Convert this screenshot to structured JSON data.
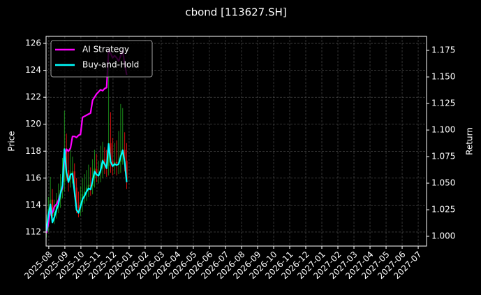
{
  "chart_data": {
    "type": "candlestick",
    "title": "cbond [113627.SH]",
    "ylabel": "Price",
    "y2label": "Return",
    "grid": true,
    "legend": "upper left",
    "xlim": [
      -0.17,
      23.52
    ],
    "xticks": [
      {
        "value": 0,
        "label": "2025-08"
      },
      {
        "value": 1,
        "label": "2025-09"
      },
      {
        "value": 2,
        "label": "2025-10"
      },
      {
        "value": 3,
        "label": "2025-11"
      },
      {
        "value": 4,
        "label": "2025-12"
      },
      {
        "value": 5,
        "label": "2026-01"
      },
      {
        "value": 6,
        "label": "2026-02"
      },
      {
        "value": 7,
        "label": "2026-03"
      },
      {
        "value": 8,
        "label": "2026-04"
      },
      {
        "value": 9,
        "label": "2026-05"
      },
      {
        "value": 10,
        "label": "2026-06"
      },
      {
        "value": 11,
        "label": "2026-07"
      },
      {
        "value": 12,
        "label": "2026-08"
      },
      {
        "value": 13,
        "label": "2026-09"
      },
      {
        "value": 14,
        "label": "2026-10"
      },
      {
        "value": 15,
        "label": "2026-11"
      },
      {
        "value": 16,
        "label": "2026-12"
      },
      {
        "value": 17,
        "label": "2027-01"
      },
      {
        "value": 18,
        "label": "2027-02"
      },
      {
        "value": 19,
        "label": "2027-03"
      },
      {
        "value": 20,
        "label": "2027-04"
      },
      {
        "value": 21,
        "label": "2027-05"
      },
      {
        "value": 22,
        "label": "2027-06"
      },
      {
        "value": 23,
        "label": "2027-07"
      }
    ],
    "ylim": [
      110.96,
      126.52
    ],
    "yticks": [
      112,
      114,
      116,
      118,
      120,
      122,
      124,
      126
    ],
    "y2lim": [
      0.9908,
      1.1882
    ],
    "y2ticks": [
      {
        "value": 1,
        "label": "1.000"
      },
      1.025,
      {
        "value": 1.05,
        "label": "1.050"
      },
      1.075,
      {
        "value": 1.1,
        "label": "1.100"
      },
      1.125,
      {
        "value": 1.15,
        "label": "1.150"
      },
      1.175
    ],
    "x": [
      -0.15,
      -0.025,
      0.1,
      0.225,
      0.35,
      0.475,
      0.6,
      0.725,
      0.85,
      0.975,
      1.1,
      1.225,
      1.35,
      1.475,
      1.6,
      1.725,
      1.85,
      1.975,
      2.1,
      2.225,
      2.35,
      2.475,
      2.6,
      2.725,
      2.85,
      2.975,
      3.1,
      3.225,
      3.35,
      3.475,
      3.6,
      3.725,
      3.85,
      3.975,
      4.1,
      4.225,
      4.35,
      4.475,
      4.6,
      4.725,
      4.85
    ],
    "candles": {
      "up_color": "#1a8a1a",
      "down_color": "#d01010",
      "open": [
        112.2,
        112.6,
        113.7,
        114.4,
        113.2,
        113.5,
        114.0,
        114.4,
        115.1,
        115.7,
        118.2,
        116.6,
        115.9,
        116.4,
        116.5,
        115.3,
        114.0,
        113.8,
        114.2,
        114.8,
        115.0,
        115.3,
        115.5,
        115.4,
        116.0,
        116.7,
        116.4,
        116.4,
        116.7,
        117.4,
        117.2,
        116.9,
        118.6,
        117.3,
        117.0,
        117.2,
        117.1,
        117.2,
        117.7,
        118.1,
        117.3
      ],
      "high": [
        113.3,
        114.6,
        116.1,
        115.2,
        114.4,
        114.9,
        115.6,
        116.3,
        117.5,
        121.0,
        119.3,
        117.9,
        118.2,
        117.6,
        117.1,
        116.0,
        115.0,
        115.4,
        116.0,
        116.3,
        116.6,
        117.0,
        116.8,
        117.4,
        118.1,
        117.8,
        117.3,
        118.4,
        118.7,
        118.3,
        118.1,
        125.3,
        120.9,
        119.0,
        118.6,
        118.8,
        119.5,
        121.5,
        121.2,
        119.4,
        118.6
      ],
      "low": [
        111.6,
        112.0,
        113.2,
        112.7,
        112.6,
        113.0,
        113.4,
        113.8,
        114.5,
        115.0,
        115.8,
        115.0,
        115.3,
        115.6,
        114.6,
        113.4,
        113.1,
        113.2,
        113.5,
        114.1,
        114.3,
        114.6,
        114.7,
        114.8,
        115.3,
        115.7,
        115.6,
        115.7,
        116.0,
        116.3,
        116.1,
        116.2,
        116.4,
        116.2,
        116.3,
        116.2,
        116.3,
        116.4,
        117.0,
        116.5,
        115.2
      ],
      "close": [
        112.6,
        113.7,
        114.4,
        113.2,
        113.5,
        114.0,
        114.4,
        115.1,
        115.7,
        118.2,
        116.6,
        115.9,
        116.4,
        116.5,
        115.3,
        114.0,
        113.8,
        114.2,
        114.8,
        115.0,
        115.3,
        115.5,
        115.4,
        116.0,
        116.7,
        116.4,
        116.4,
        116.7,
        117.4,
        117.2,
        116.9,
        118.6,
        117.3,
        117.0,
        117.2,
        117.1,
        117.2,
        117.7,
        118.1,
        117.3,
        115.9
      ]
    },
    "series": [
      {
        "name": "AI Strategy",
        "color": "#ff00ff",
        "axis": "y2",
        "values": [
          1.003,
          1.012,
          1.025,
          1.022,
          1.028,
          1.03,
          1.034,
          1.04,
          1.046,
          1.075,
          1.082,
          1.08,
          1.083,
          1.094,
          1.094,
          1.093,
          1.095,
          1.096,
          1.112,
          1.113,
          1.114,
          1.115,
          1.116,
          1.128,
          1.131,
          1.134,
          1.136,
          1.138,
          1.137,
          1.139,
          1.14,
          1.175,
          1.172,
          1.168,
          1.17,
          1.168,
          1.165,
          1.17,
          1.175,
          1.162,
          1.152
        ]
      },
      {
        "name": "Buy-and-Hold",
        "color": "#00ffff",
        "axis": "y2",
        "values": [
          1.005,
          1.02,
          1.03,
          1.013,
          1.018,
          1.025,
          1.03,
          1.04,
          1.048,
          1.082,
          1.06,
          1.051,
          1.058,
          1.059,
          1.042,
          1.025,
          1.022,
          1.028,
          1.035,
          1.038,
          1.042,
          1.045,
          1.044,
          1.052,
          1.061,
          1.058,
          1.057,
          1.062,
          1.071,
          1.068,
          1.064,
          1.087,
          1.07,
          1.066,
          1.068,
          1.067,
          1.068,
          1.075,
          1.081,
          1.07,
          1.051
        ]
      }
    ]
  }
}
